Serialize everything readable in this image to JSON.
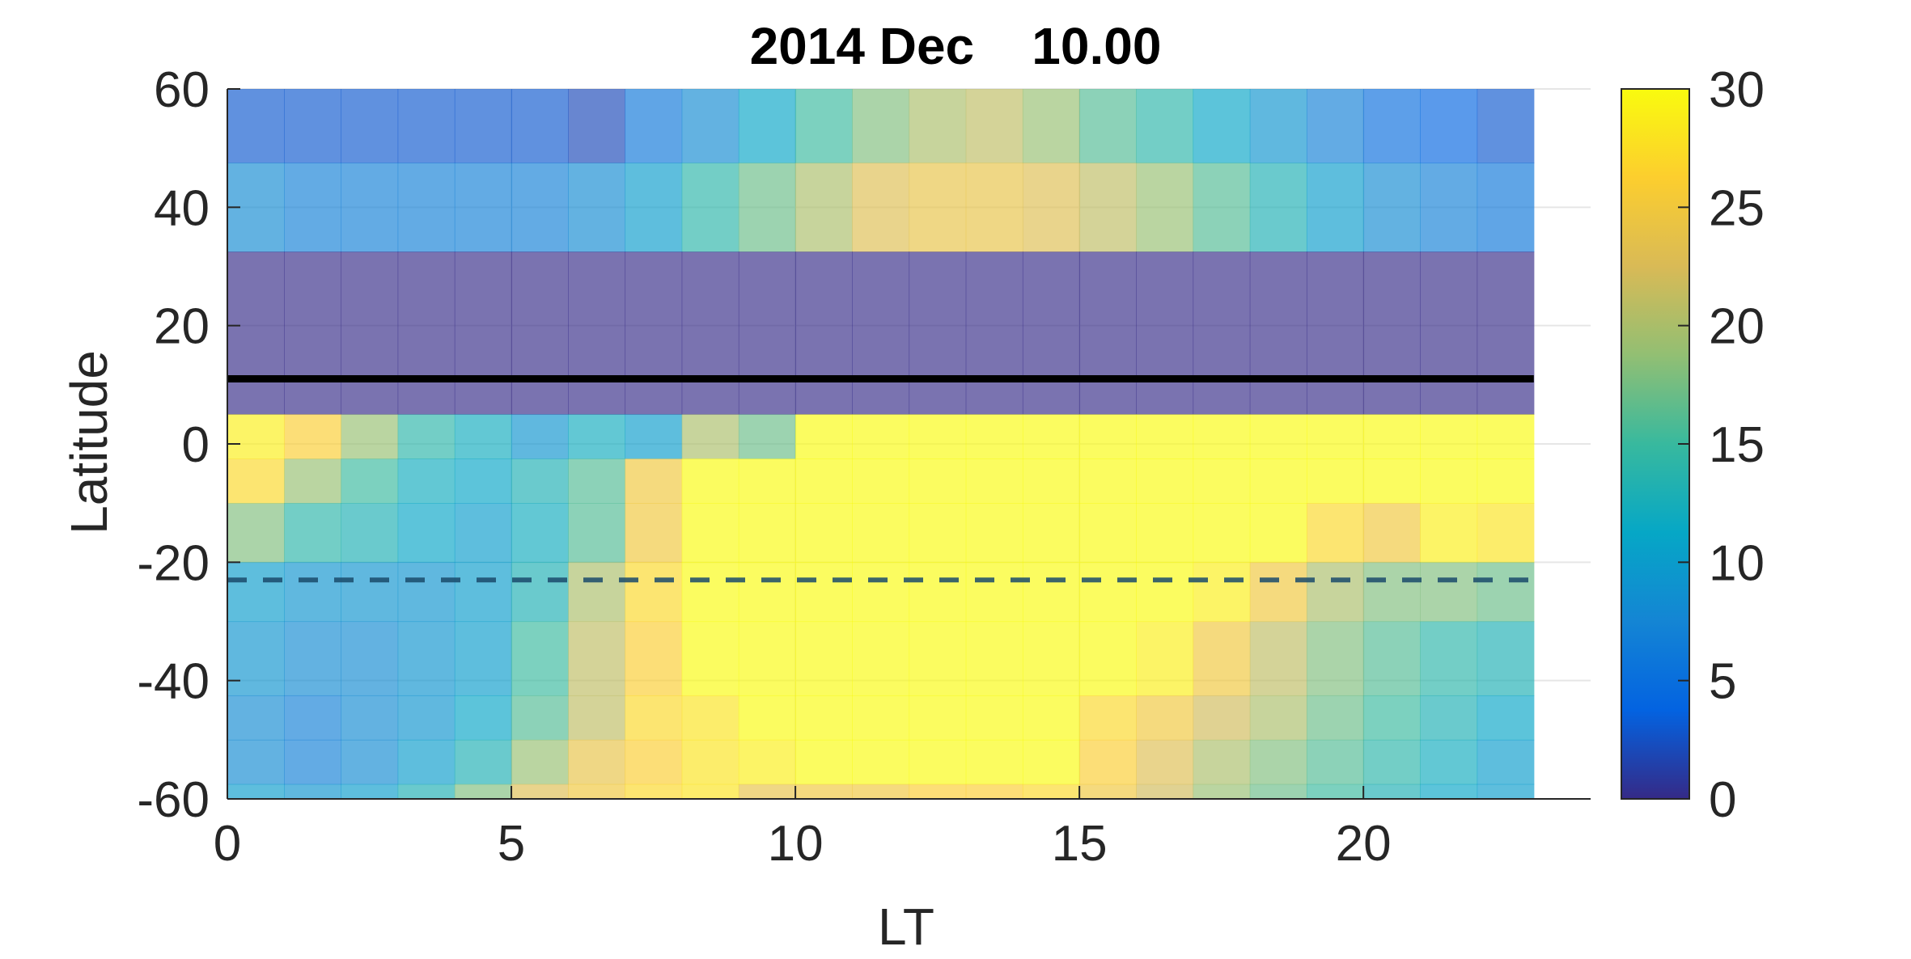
{
  "chart_data": {
    "type": "heatmap",
    "title_left": "2014 Dec",
    "title_right": "10.00",
    "xlabel": "LT",
    "ylabel": "Latitude",
    "xlim": [
      0,
      24
    ],
    "ylim": [
      -60,
      60
    ],
    "xticks": [
      0,
      5,
      10,
      15,
      20
    ],
    "yticks": [
      -60,
      -40,
      -20,
      0,
      20,
      40,
      60
    ],
    "colorbar": {
      "min": 0,
      "max": 30,
      "ticks": [
        0,
        5,
        10,
        15,
        20,
        25,
        30
      ]
    },
    "colormap": "parula",
    "grid": true,
    "cell_width": 1,
    "lt_max": 23,
    "masked_value": 0,
    "bands": [
      {
        "lat_min": 47.5,
        "lat_max": 60,
        "values": [
          3,
          3,
          3,
          3,
          3,
          3,
          2,
          6,
          8,
          11,
          15,
          18,
          20,
          21,
          19,
          16,
          14,
          11,
          9,
          7,
          5,
          4,
          3
        ]
      },
      {
        "lat_min": 32.5,
        "lat_max": 47.5,
        "values": [
          8,
          7,
          7,
          7,
          7,
          7,
          8,
          10,
          14,
          17,
          20,
          23,
          24,
          24,
          23,
          21,
          19,
          16,
          13,
          10,
          8,
          7,
          6
        ]
      },
      {
        "lat_min": 5,
        "lat_max": 32.5,
        "masked": true
      },
      {
        "lat_min": -2.5,
        "lat_max": 5,
        "values": [
          29,
          26,
          19,
          14,
          12,
          9,
          12,
          10,
          20,
          17,
          30,
          30,
          30,
          30,
          30,
          30,
          30,
          30,
          30,
          30,
          30,
          30,
          30
        ]
      },
      {
        "lat_min": -10,
        "lat_max": -2.5,
        "values": [
          27,
          19,
          15,
          12,
          11,
          13,
          16,
          25,
          30,
          30,
          30,
          30,
          30,
          30,
          30,
          30,
          30,
          30,
          30,
          30,
          30,
          30,
          30
        ]
      },
      {
        "lat_min": -20,
        "lat_max": -10,
        "values": [
          18,
          14,
          13,
          11,
          10,
          12,
          16,
          25,
          30,
          30,
          30,
          30,
          30,
          30,
          30,
          30,
          30,
          30,
          30,
          27,
          25,
          29,
          28
        ]
      },
      {
        "lat_min": -30,
        "lat_max": -20,
        "values": [
          10,
          9,
          9,
          9,
          10,
          13,
          20,
          27,
          30,
          30,
          30,
          30,
          30,
          30,
          30,
          30,
          30,
          29,
          25,
          20,
          18,
          18,
          17
        ]
      },
      {
        "lat_min": -42.5,
        "lat_max": -30,
        "values": [
          9,
          8,
          8,
          9,
          10,
          15,
          21,
          26,
          30,
          30,
          30,
          30,
          30,
          30,
          30,
          30,
          29,
          25,
          21,
          18,
          16,
          14,
          13
        ]
      },
      {
        "lat_min": -50,
        "lat_max": -42.5,
        "values": [
          8,
          7,
          8,
          9,
          11,
          16,
          21,
          27,
          28,
          30,
          30,
          30,
          30,
          30,
          30,
          27,
          25,
          22,
          20,
          17,
          15,
          13,
          11
        ]
      },
      {
        "lat_min": -57.5,
        "lat_max": -50,
        "values": [
          8,
          7,
          8,
          10,
          13,
          19,
          24,
          26,
          28,
          29,
          30,
          30,
          30,
          30,
          30,
          26,
          23,
          20,
          18,
          16,
          14,
          12,
          10
        ]
      },
      {
        "lat_min": -60,
        "lat_max": -57.5,
        "values": [
          10,
          9,
          10,
          13,
          18,
          23,
          25,
          27,
          28,
          24,
          25,
          25,
          26,
          26,
          27,
          25,
          22,
          19,
          17,
          15,
          13,
          11,
          10
        ]
      }
    ],
    "annotations": [
      {
        "type": "solid-line",
        "latitude": 11,
        "color": "#000000"
      },
      {
        "type": "dashed-line",
        "latitude": -23,
        "color": "#1a4a6b"
      }
    ]
  }
}
